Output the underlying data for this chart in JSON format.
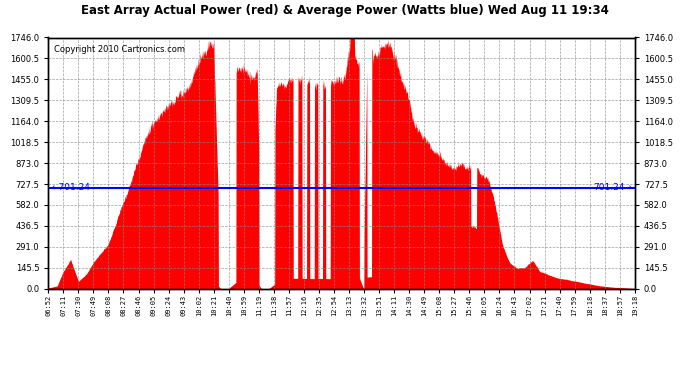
{
  "title": "East Array Actual Power (red) & Average Power (Watts blue) Wed Aug 11 19:34",
  "avg_power": 701.24,
  "y_max": 1746.0,
  "y_min": 0.0,
  "y_ticks": [
    0.0,
    145.5,
    291.0,
    436.5,
    582.0,
    727.5,
    873.0,
    1018.5,
    1164.0,
    1309.5,
    1455.0,
    1600.5,
    1746.0
  ],
  "fill_color": "#FF0000",
  "line_color": "#0000FF",
  "copyright_text": "Copyright 2010 Cartronics.com",
  "x_labels": [
    "06:52",
    "07:11",
    "07:30",
    "07:49",
    "08:08",
    "08:27",
    "08:46",
    "09:05",
    "09:24",
    "09:43",
    "10:02",
    "10:21",
    "10:40",
    "10:59",
    "11:19",
    "11:38",
    "11:57",
    "12:16",
    "12:35",
    "12:54",
    "13:13",
    "13:32",
    "13:51",
    "14:11",
    "14:30",
    "14:49",
    "15:08",
    "15:27",
    "15:46",
    "16:05",
    "16:24",
    "16:43",
    "17:02",
    "17:21",
    "17:40",
    "17:59",
    "18:18",
    "18:37",
    "18:57",
    "19:18"
  ],
  "background_color": "#FFFFFF",
  "grid_color": "#AAAAAA",
  "title_fontsize": 9,
  "tick_fontsize": 6,
  "copyright_fontsize": 6
}
